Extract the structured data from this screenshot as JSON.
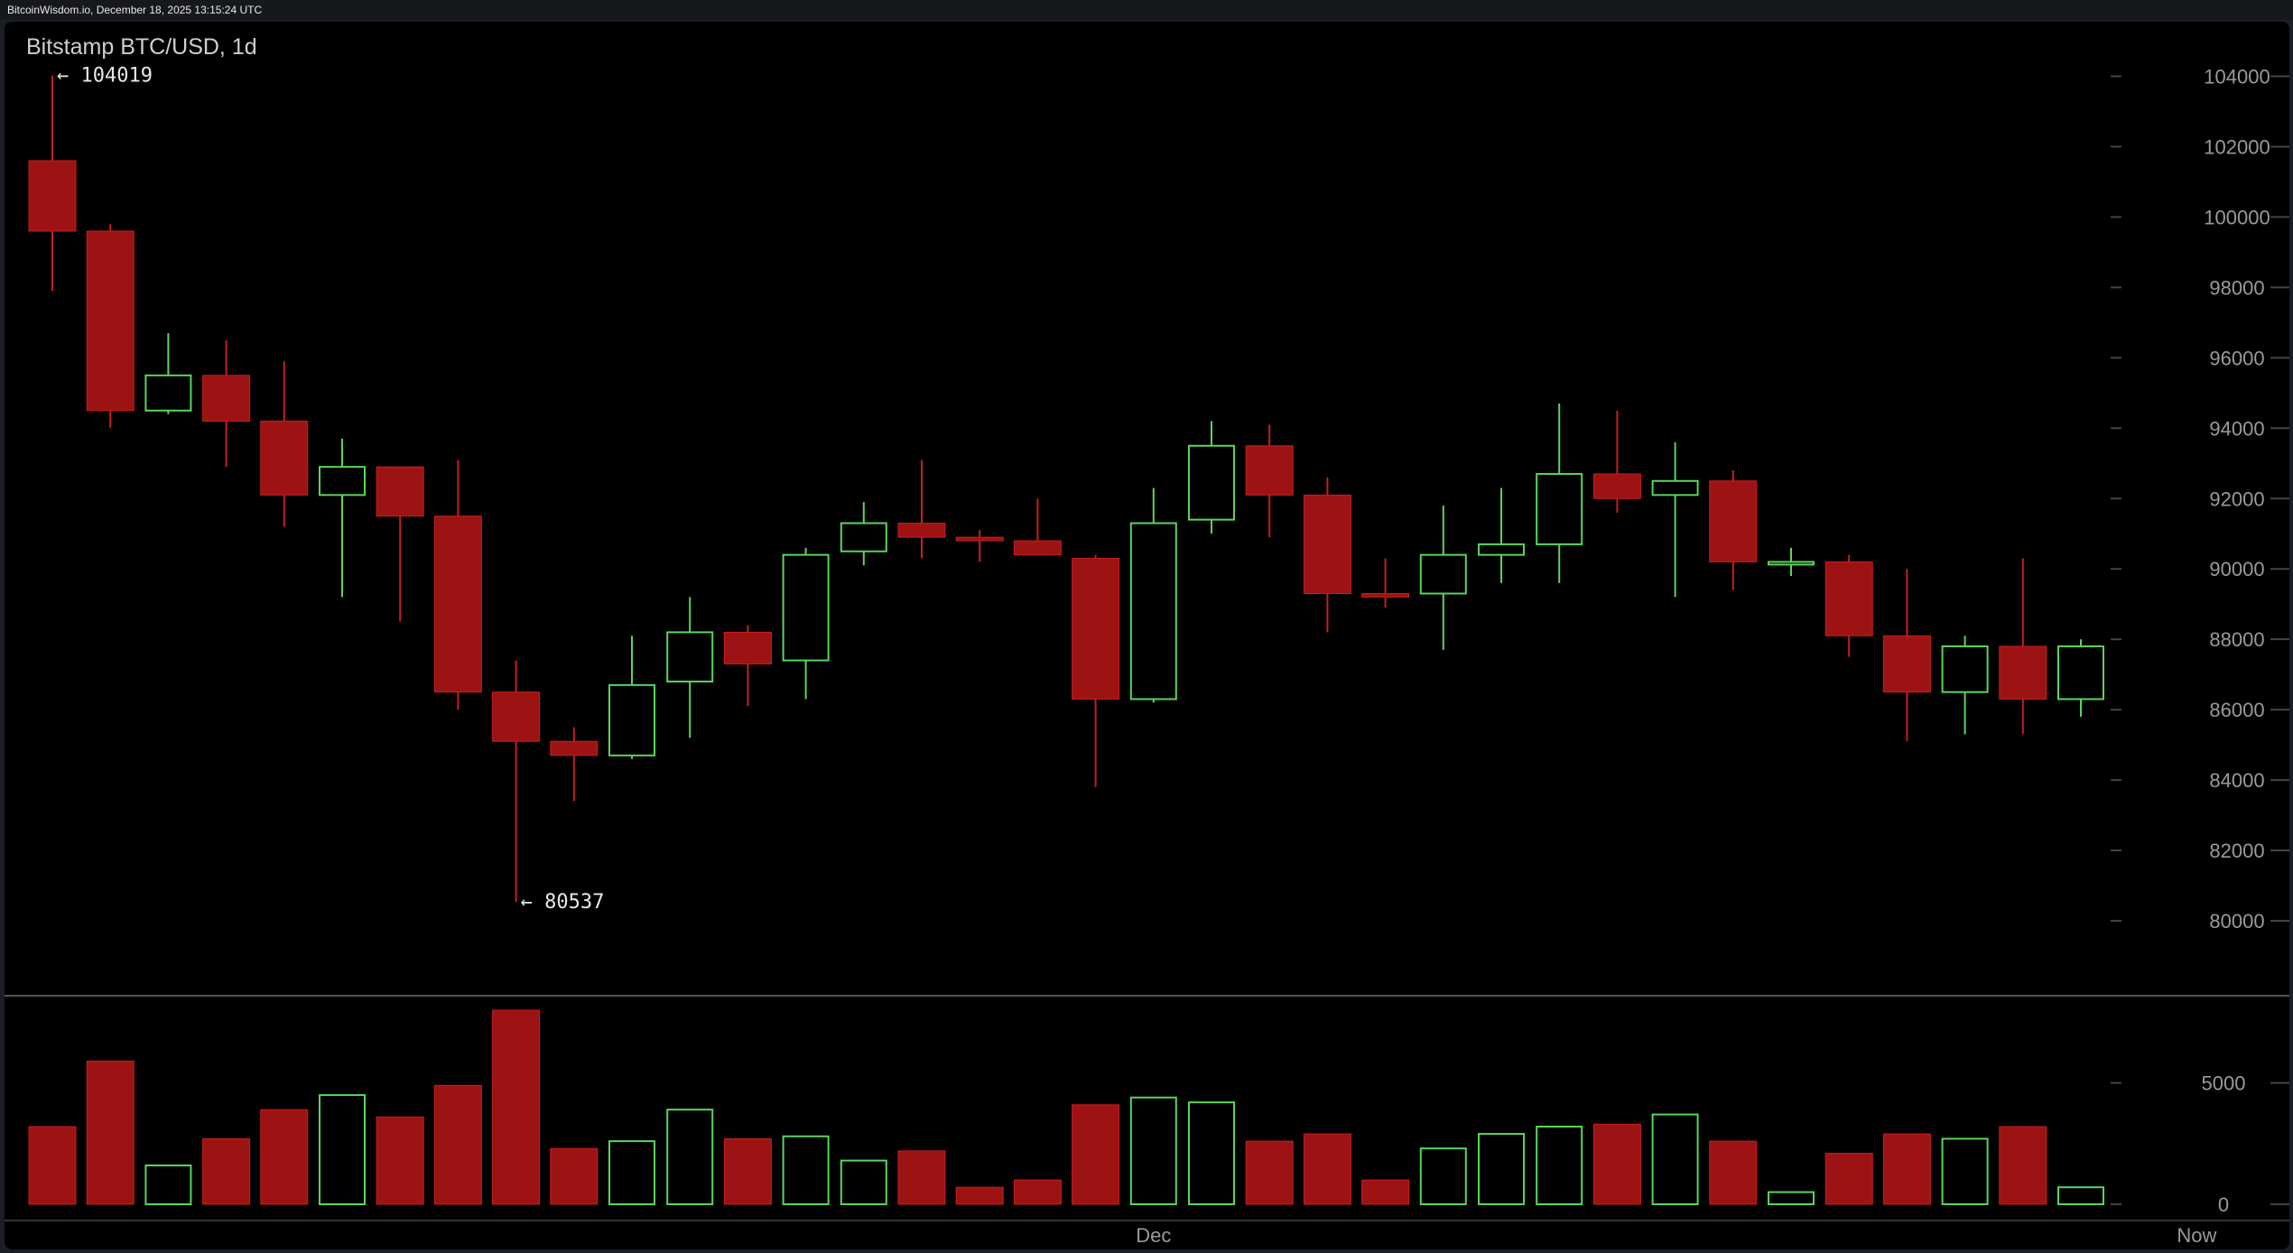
{
  "header": {
    "source": "BitcoinWisdom.io, December 18, 2025 13:15:24 UTC"
  },
  "colors": {
    "up": "#59d659",
    "down": "#9d1313",
    "down_wick": "#c81e1e",
    "grid": "#444444",
    "axis_text": "#9a9a9a"
  },
  "chart_data": {
    "type": "candlestick",
    "title": "Bitstamp BTC/USD, 1d",
    "ylim": [
      79000,
      104500
    ],
    "yticks": [
      "80000",
      "82000",
      "84000",
      "86000",
      "88000",
      "90000",
      "92000",
      "94000",
      "96000",
      "98000",
      "100000",
      "102000",
      "104000"
    ],
    "volume_ylim": [
      0,
      8000
    ],
    "volume_ticks": [
      "0",
      "5000"
    ],
    "x_labels": [
      {
        "index": 19,
        "label": "Dec"
      },
      {
        "index": 37,
        "label": "Now"
      }
    ],
    "annotations": [
      {
        "index": 0,
        "value": 104019,
        "label": "← 104019"
      },
      {
        "index": 8,
        "value": 80537,
        "label": "← 80537"
      }
    ],
    "candles": [
      {
        "o": 101600,
        "h": 104019,
        "l": 97900,
        "c": 99600,
        "v": 3200
      },
      {
        "o": 99600,
        "h": 99800,
        "l": 94000,
        "c": 94500,
        "v": 5900
      },
      {
        "o": 94500,
        "h": 96700,
        "l": 94400,
        "c": 95500,
        "v": 1600
      },
      {
        "o": 95500,
        "h": 96500,
        "l": 92900,
        "c": 94200,
        "v": 2700
      },
      {
        "o": 94200,
        "h": 95900,
        "l": 91200,
        "c": 92100,
        "v": 3900
      },
      {
        "o": 92100,
        "h": 93700,
        "l": 89200,
        "c": 92900,
        "v": 4500
      },
      {
        "o": 92900,
        "h": 92900,
        "l": 88500,
        "c": 91500,
        "v": 3600
      },
      {
        "o": 91500,
        "h": 93100,
        "l": 86000,
        "c": 86500,
        "v": 4900
      },
      {
        "o": 86500,
        "h": 87400,
        "l": 80537,
        "c": 85100,
        "v": 8000
      },
      {
        "o": 85100,
        "h": 85500,
        "l": 83400,
        "c": 84700,
        "v": 2300
      },
      {
        "o": 84700,
        "h": 88100,
        "l": 84600,
        "c": 86700,
        "v": 2600
      },
      {
        "o": 86800,
        "h": 89200,
        "l": 85200,
        "c": 88200,
        "v": 3900
      },
      {
        "o": 88200,
        "h": 88400,
        "l": 86100,
        "c": 87300,
        "v": 2700
      },
      {
        "o": 87400,
        "h": 90600,
        "l": 86300,
        "c": 90400,
        "v": 2800
      },
      {
        "o": 90500,
        "h": 91900,
        "l": 90100,
        "c": 91300,
        "v": 1800
      },
      {
        "o": 91300,
        "h": 93100,
        "l": 90300,
        "c": 90900,
        "v": 2200
      },
      {
        "o": 90900,
        "h": 91100,
        "l": 90200,
        "c": 90800,
        "v": 700
      },
      {
        "o": 90800,
        "h": 92000,
        "l": 90400,
        "c": 90400,
        "v": 1000
      },
      {
        "o": 90300,
        "h": 90400,
        "l": 83800,
        "c": 86300,
        "v": 4100
      },
      {
        "o": 86300,
        "h": 92300,
        "l": 86200,
        "c": 91300,
        "v": 4400
      },
      {
        "o": 91400,
        "h": 94200,
        "l": 91000,
        "c": 93500,
        "v": 4200
      },
      {
        "o": 93500,
        "h": 94100,
        "l": 90900,
        "c": 92100,
        "v": 2600
      },
      {
        "o": 92100,
        "h": 92600,
        "l": 88200,
        "c": 89300,
        "v": 2900
      },
      {
        "o": 89300,
        "h": 90300,
        "l": 88900,
        "c": 89200,
        "v": 1000
      },
      {
        "o": 89300,
        "h": 91800,
        "l": 87700,
        "c": 90400,
        "v": 2300
      },
      {
        "o": 90400,
        "h": 92300,
        "l": 89600,
        "c": 90700,
        "v": 2900
      },
      {
        "o": 90700,
        "h": 94700,
        "l": 89600,
        "c": 92700,
        "v": 3200
      },
      {
        "o": 92700,
        "h": 94500,
        "l": 91600,
        "c": 92000,
        "v": 3300
      },
      {
        "o": 92100,
        "h": 93600,
        "l": 89200,
        "c": 92500,
        "v": 3700
      },
      {
        "o": 92500,
        "h": 92800,
        "l": 89400,
        "c": 90200,
        "v": 2600
      },
      {
        "o": 90200,
        "h": 90600,
        "l": 89800,
        "c": 90200,
        "v": 500
      },
      {
        "o": 90200,
        "h": 90400,
        "l": 87500,
        "c": 88100,
        "v": 2100
      },
      {
        "o": 88100,
        "h": 90000,
        "l": 85100,
        "c": 86500,
        "v": 2900
      },
      {
        "o": 86500,
        "h": 88100,
        "l": 85300,
        "c": 87800,
        "v": 2700
      },
      {
        "o": 87800,
        "h": 90300,
        "l": 85300,
        "c": 86300,
        "v": 3200
      },
      {
        "o": 86300,
        "h": 88000,
        "l": 85800,
        "c": 87800,
        "v": 700
      }
    ]
  }
}
